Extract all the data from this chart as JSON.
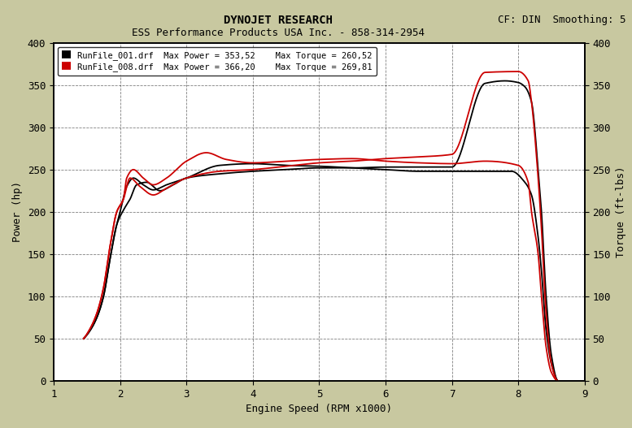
{
  "title1": "DYNOJET RESEARCH",
  "title2": "ESS Performance Products USA Inc. - 858-314-2954",
  "cf_text": "CF: DIN  Smoothing: 5",
  "xlabel": "Engine Speed (RPM x1000)",
  "ylabel_left": "Power (hp)",
  "ylabel_right": "Torque (ft-lbs)",
  "xlim": [
    1,
    9
  ],
  "ylim": [
    0,
    400
  ],
  "xticks": [
    1,
    2,
    3,
    4,
    5,
    6,
    7,
    8,
    9
  ],
  "yticks": [
    0,
    50,
    100,
    150,
    200,
    250,
    300,
    350,
    400
  ],
  "legend_entries": [
    "RunFile_001.drf  Max Power = 353,52    Max Torque = 260,52",
    "RunFile_008.drf  Max Power = 366,20    Max Torque = 269,81"
  ],
  "line_colors": [
    "#000000",
    "#cc0000"
  ],
  "bg_color": "#c8c8a0",
  "plot_bg": "#ffffff",
  "grid_color": "#000000",
  "grid_style": "--",
  "power_001_x": [
    1.45,
    1.55,
    1.65,
    1.75,
    1.85,
    1.95,
    2.05,
    2.15,
    2.25,
    2.4,
    2.6,
    2.8,
    3.0,
    3.5,
    4.0,
    4.5,
    5.0,
    5.5,
    6.0,
    6.5,
    7.0,
    7.5,
    7.8,
    8.0,
    8.1,
    8.2,
    8.3,
    8.35,
    8.42,
    8.5,
    8.6
  ],
  "power_001_y": [
    50,
    60,
    75,
    100,
    145,
    185,
    202,
    215,
    232,
    235,
    225,
    232,
    240,
    245,
    248,
    250,
    252,
    252,
    253,
    253,
    253,
    352,
    355,
    353,
    348,
    330,
    250,
    200,
    100,
    30,
    0
  ],
  "torque_001_x": [
    1.45,
    1.55,
    1.65,
    1.75,
    1.85,
    1.95,
    2.0,
    2.1,
    2.2,
    2.35,
    2.5,
    2.7,
    3.0,
    3.5,
    4.0,
    4.5,
    5.0,
    5.5,
    6.0,
    6.5,
    7.0,
    7.5,
    7.9,
    8.1,
    8.2,
    8.3,
    8.35,
    8.42,
    8.5,
    8.6
  ],
  "torque_001_y": [
    50,
    60,
    75,
    100,
    145,
    185,
    200,
    230,
    240,
    232,
    226,
    232,
    240,
    255,
    257,
    255,
    254,
    252,
    250,
    248,
    248,
    248,
    248,
    235,
    220,
    170,
    130,
    60,
    20,
    0
  ],
  "power_008_x": [
    1.45,
    1.55,
    1.65,
    1.75,
    1.85,
    1.95,
    2.05,
    2.15,
    2.3,
    2.5,
    2.7,
    3.0,
    3.5,
    4.0,
    4.5,
    5.0,
    5.5,
    6.0,
    6.5,
    7.0,
    7.5,
    8.0,
    8.15,
    8.2,
    8.3,
    8.35,
    8.42,
    8.5,
    8.6
  ],
  "power_008_y": [
    50,
    62,
    80,
    110,
    160,
    200,
    215,
    240,
    230,
    220,
    228,
    240,
    248,
    250,
    254,
    258,
    260,
    263,
    265,
    268,
    365,
    366,
    355,
    330,
    240,
    180,
    80,
    20,
    0
  ],
  "torque_008_x": [
    1.45,
    1.55,
    1.65,
    1.75,
    1.85,
    1.95,
    2.05,
    2.1,
    2.2,
    2.35,
    2.5,
    2.7,
    3.0,
    3.3,
    3.6,
    4.0,
    4.5,
    5.0,
    5.5,
    6.0,
    6.5,
    7.0,
    7.5,
    8.0,
    8.15,
    8.2,
    8.3,
    8.35,
    8.42,
    8.5,
    8.6
  ],
  "torque_008_y": [
    50,
    62,
    80,
    110,
    160,
    200,
    215,
    240,
    250,
    240,
    232,
    240,
    260,
    270,
    262,
    258,
    260,
    262,
    263,
    260,
    258,
    257,
    260,
    255,
    235,
    200,
    150,
    100,
    40,
    10,
    0
  ]
}
